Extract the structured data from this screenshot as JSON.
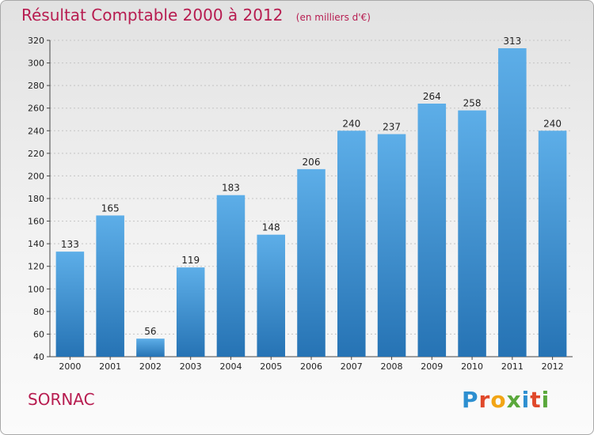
{
  "header": {
    "title": "Résultat Comptable 2000 à 2012",
    "subtitle": "(en milliers d'€)"
  },
  "footer": {
    "commune": "SORNAC",
    "logo_letters": [
      "P",
      "r",
      "o",
      "x",
      "i",
      "t",
      "i"
    ]
  },
  "colors": {
    "accent": "#b71c50",
    "bar_top": "#5daee8",
    "bar_bottom": "#2673b4"
  },
  "chart_data": {
    "type": "bar",
    "title": "Résultat Comptable 2000 à 2012",
    "subtitle": "(en milliers d'€)",
    "categories": [
      "2000",
      "2001",
      "2002",
      "2003",
      "2004",
      "2005",
      "2006",
      "2007",
      "2008",
      "2009",
      "2010",
      "2011",
      "2012"
    ],
    "values": [
      133,
      165,
      56,
      119,
      183,
      148,
      206,
      240,
      237,
      264,
      258,
      313,
      240
    ],
    "ylim": [
      40,
      320
    ],
    "yticks": [
      40,
      60,
      80,
      100,
      120,
      140,
      160,
      180,
      200,
      220,
      240,
      260,
      280,
      300,
      320
    ],
    "grid": true,
    "data_labels": true
  }
}
